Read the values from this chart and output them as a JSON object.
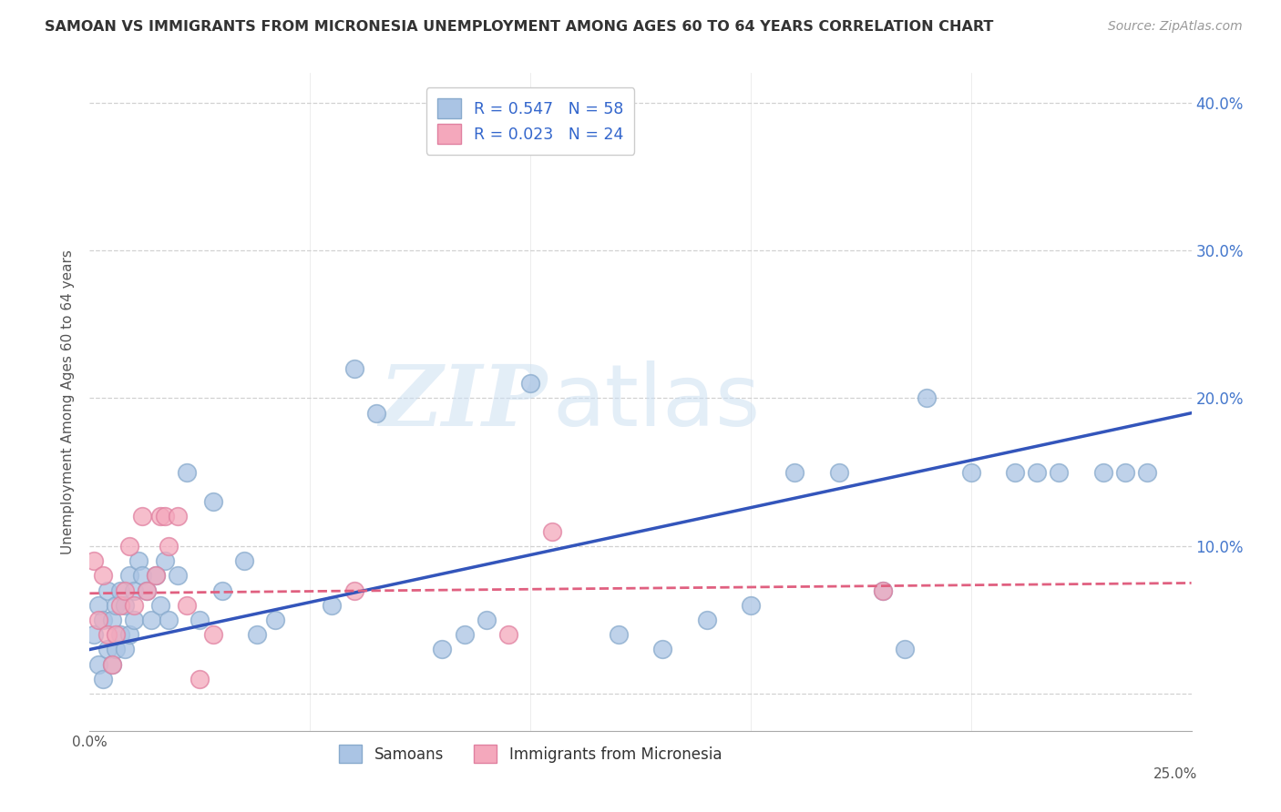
{
  "title": "SAMOAN VS IMMIGRANTS FROM MICRONESIA UNEMPLOYMENT AMONG AGES 60 TO 64 YEARS CORRELATION CHART",
  "source": "Source: ZipAtlas.com",
  "ylabel": "Unemployment Among Ages 60 to 64 years",
  "xlim": [
    0.0,
    0.25
  ],
  "ylim": [
    -0.025,
    0.42
  ],
  "yticks": [
    0.0,
    0.1,
    0.2,
    0.3,
    0.4
  ],
  "ytick_labels_right": [
    "",
    "10.0%",
    "20.0%",
    "30.0%",
    "40.0%"
  ],
  "xticks": [
    0.0,
    0.05,
    0.1,
    0.15,
    0.2,
    0.25
  ],
  "background_color": "#ffffff",
  "grid_color": "#cccccc",
  "watermark_zip": "ZIP",
  "watermark_atlas": "atlas",
  "samoans_color": "#aac4e4",
  "samoans_edge": "#88aacc",
  "micronesia_color": "#f4a8bc",
  "micronesia_edge": "#e080a0",
  "samoans_line_color": "#3355bb",
  "micronesia_line_color": "#e06080",
  "blue_line": [
    0.0,
    0.03,
    0.25,
    0.19
  ],
  "pink_line": [
    0.0,
    0.068,
    0.25,
    0.075
  ],
  "samoans_x": [
    0.001,
    0.002,
    0.002,
    0.003,
    0.003,
    0.004,
    0.004,
    0.005,
    0.005,
    0.006,
    0.006,
    0.007,
    0.007,
    0.008,
    0.008,
    0.009,
    0.009,
    0.01,
    0.01,
    0.011,
    0.012,
    0.013,
    0.014,
    0.015,
    0.016,
    0.017,
    0.018,
    0.02,
    0.022,
    0.025,
    0.028,
    0.03,
    0.035,
    0.038,
    0.042,
    0.055,
    0.06,
    0.065,
    0.08,
    0.085,
    0.09,
    0.1,
    0.12,
    0.13,
    0.14,
    0.15,
    0.16,
    0.17,
    0.18,
    0.185,
    0.19,
    0.2,
    0.21,
    0.215,
    0.22,
    0.23,
    0.235,
    0.24
  ],
  "samoans_y": [
    0.04,
    0.02,
    0.06,
    0.01,
    0.05,
    0.03,
    0.07,
    0.02,
    0.05,
    0.03,
    0.06,
    0.04,
    0.07,
    0.03,
    0.06,
    0.04,
    0.08,
    0.05,
    0.07,
    0.09,
    0.08,
    0.07,
    0.05,
    0.08,
    0.06,
    0.09,
    0.05,
    0.08,
    0.15,
    0.05,
    0.13,
    0.07,
    0.09,
    0.04,
    0.05,
    0.06,
    0.22,
    0.19,
    0.03,
    0.04,
    0.05,
    0.21,
    0.04,
    0.03,
    0.05,
    0.06,
    0.15,
    0.15,
    0.07,
    0.03,
    0.2,
    0.15,
    0.15,
    0.15,
    0.15,
    0.15,
    0.15,
    0.15
  ],
  "micronesia_x": [
    0.001,
    0.002,
    0.003,
    0.004,
    0.005,
    0.006,
    0.007,
    0.008,
    0.009,
    0.01,
    0.012,
    0.013,
    0.015,
    0.016,
    0.017,
    0.018,
    0.02,
    0.022,
    0.025,
    0.028,
    0.06,
    0.095,
    0.105,
    0.18
  ],
  "micronesia_y": [
    0.09,
    0.05,
    0.08,
    0.04,
    0.02,
    0.04,
    0.06,
    0.07,
    0.1,
    0.06,
    0.12,
    0.07,
    0.08,
    0.12,
    0.12,
    0.1,
    0.12,
    0.06,
    0.01,
    0.04,
    0.07,
    0.04,
    0.11,
    0.07
  ]
}
